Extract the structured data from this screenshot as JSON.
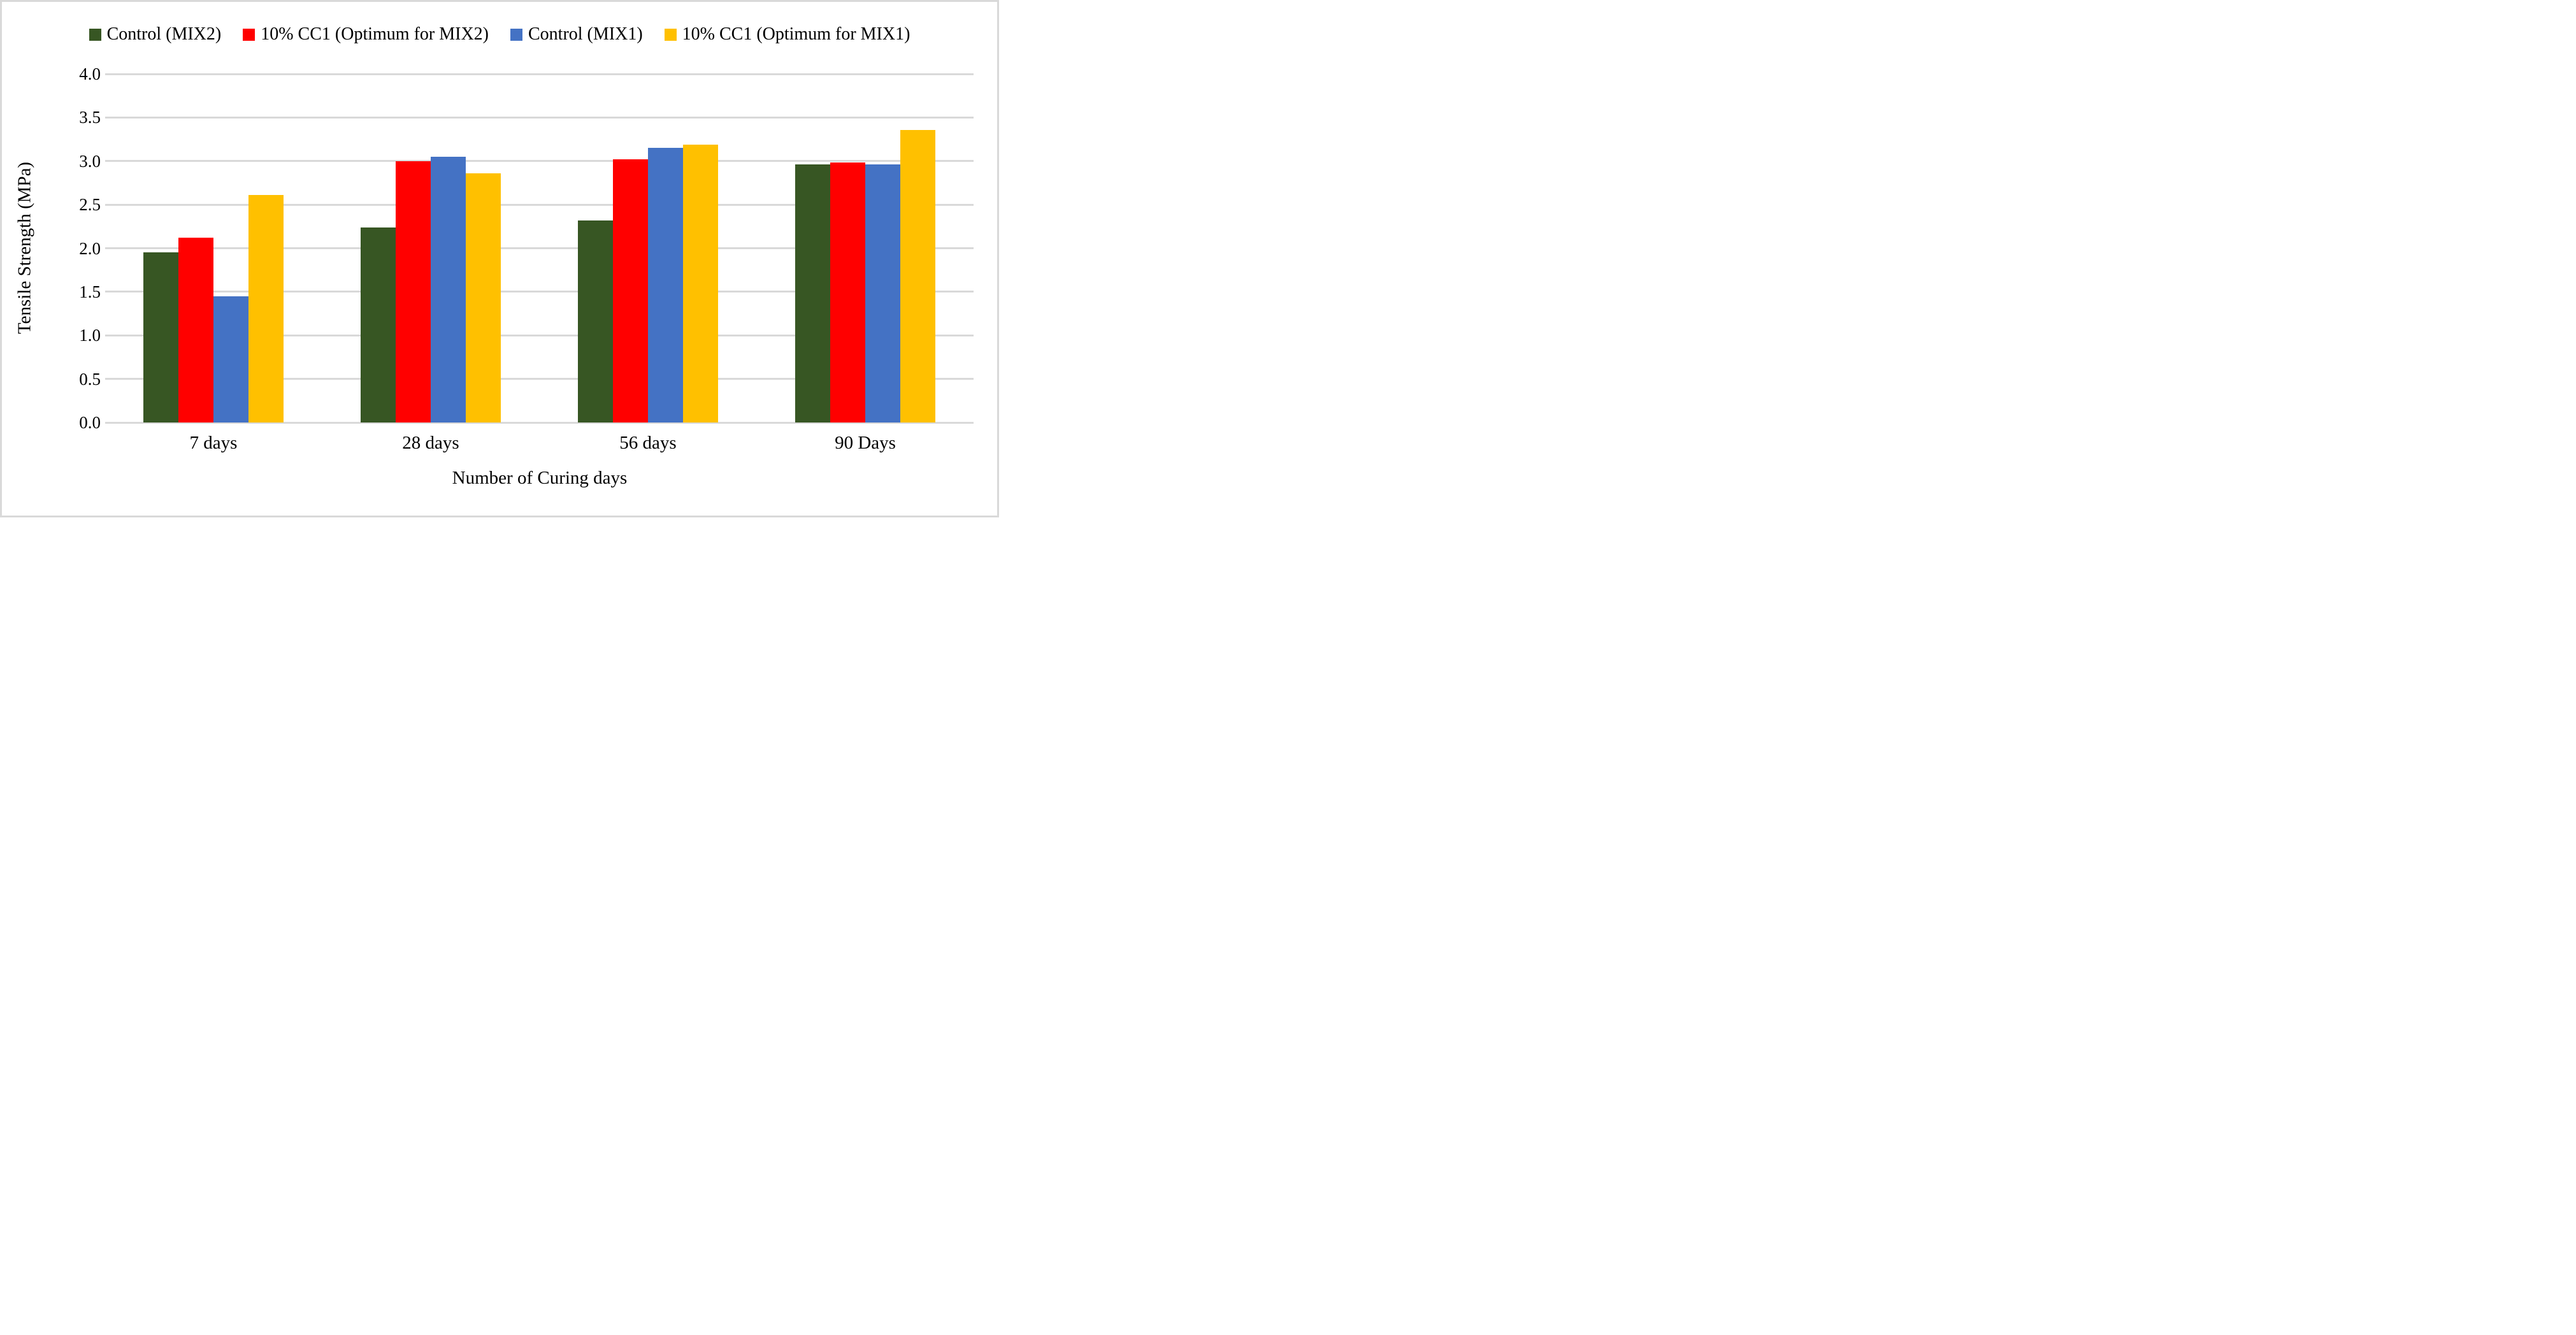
{
  "colors": {
    "background": "#FFFFFF",
    "border": "#D9D9D9",
    "gridline": "#D9D9D9",
    "text": "#000000",
    "series_green": "#375623",
    "series_red": "#FF0000",
    "series_blue": "#4472C4",
    "series_gold": "#FFC000"
  },
  "chart_data": {
    "type": "bar",
    "title": "",
    "xlabel": "Number of Curing days",
    "ylabel": "Tensile Strength (MPa)",
    "ylim": [
      0.0,
      4.0
    ],
    "ytick_step": 0.5,
    "y_ticks": [
      "4.0",
      "3.5",
      "3.0",
      "2.5",
      "2.0",
      "1.5",
      "1.0",
      "0.5",
      "0.0"
    ],
    "grid": true,
    "legend_position": "top",
    "categories": [
      "7 days",
      "28 days",
      "56 days",
      "90 Days"
    ],
    "series": [
      {
        "name": "Control (MIX2)",
        "color": "#375623",
        "values": [
          1.95,
          2.24,
          2.32,
          2.96
        ]
      },
      {
        "name": "10% CC1 (Optimum for MIX2)",
        "color": "#FF0000",
        "values": [
          2.12,
          3.0,
          3.02,
          2.98
        ]
      },
      {
        "name": "Control (MIX1)",
        "color": "#4472C4",
        "values": [
          1.45,
          3.05,
          3.15,
          2.96
        ]
      },
      {
        "name": "10% CC1 (Optimum for MIX1)",
        "color": "#FFC000",
        "values": [
          2.61,
          2.86,
          3.19,
          3.36
        ]
      }
    ]
  }
}
